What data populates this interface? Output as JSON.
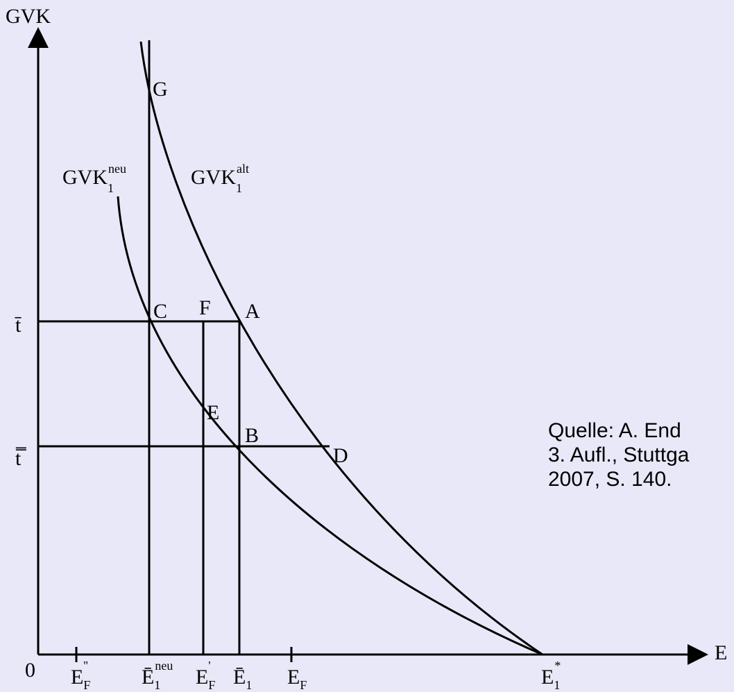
{
  "axes": {
    "y_label": "GVK",
    "x_label": "E",
    "origin": "0"
  },
  "curves": [
    {
      "main": "GVK",
      "sub": "1",
      "sup": "neu"
    },
    {
      "main": "GVK",
      "sub": "1",
      "sup": "alt"
    }
  ],
  "points": [
    "G",
    "C",
    "F",
    "A",
    "E",
    "B",
    "D"
  ],
  "y_labels": [
    "t̄",
    "t̿"
  ],
  "x_labels": [
    {
      "main": "E",
      "sub": "F",
      "sup": "''"
    },
    {
      "main": "Ē",
      "sub": "1",
      "sup": "neu"
    },
    {
      "main": "E",
      "sub": "F",
      "sup": "'"
    },
    {
      "main": "Ē",
      "sub": "1",
      "sup": ""
    },
    {
      "main": "E",
      "sub": "F",
      "sup": ""
    },
    {
      "main": "E",
      "sub": "1",
      "sup": "*"
    }
  ],
  "source": [
    "Quelle: A. End",
    "3. Aufl., Stuttga",
    "2007, S. 140."
  ]
}
